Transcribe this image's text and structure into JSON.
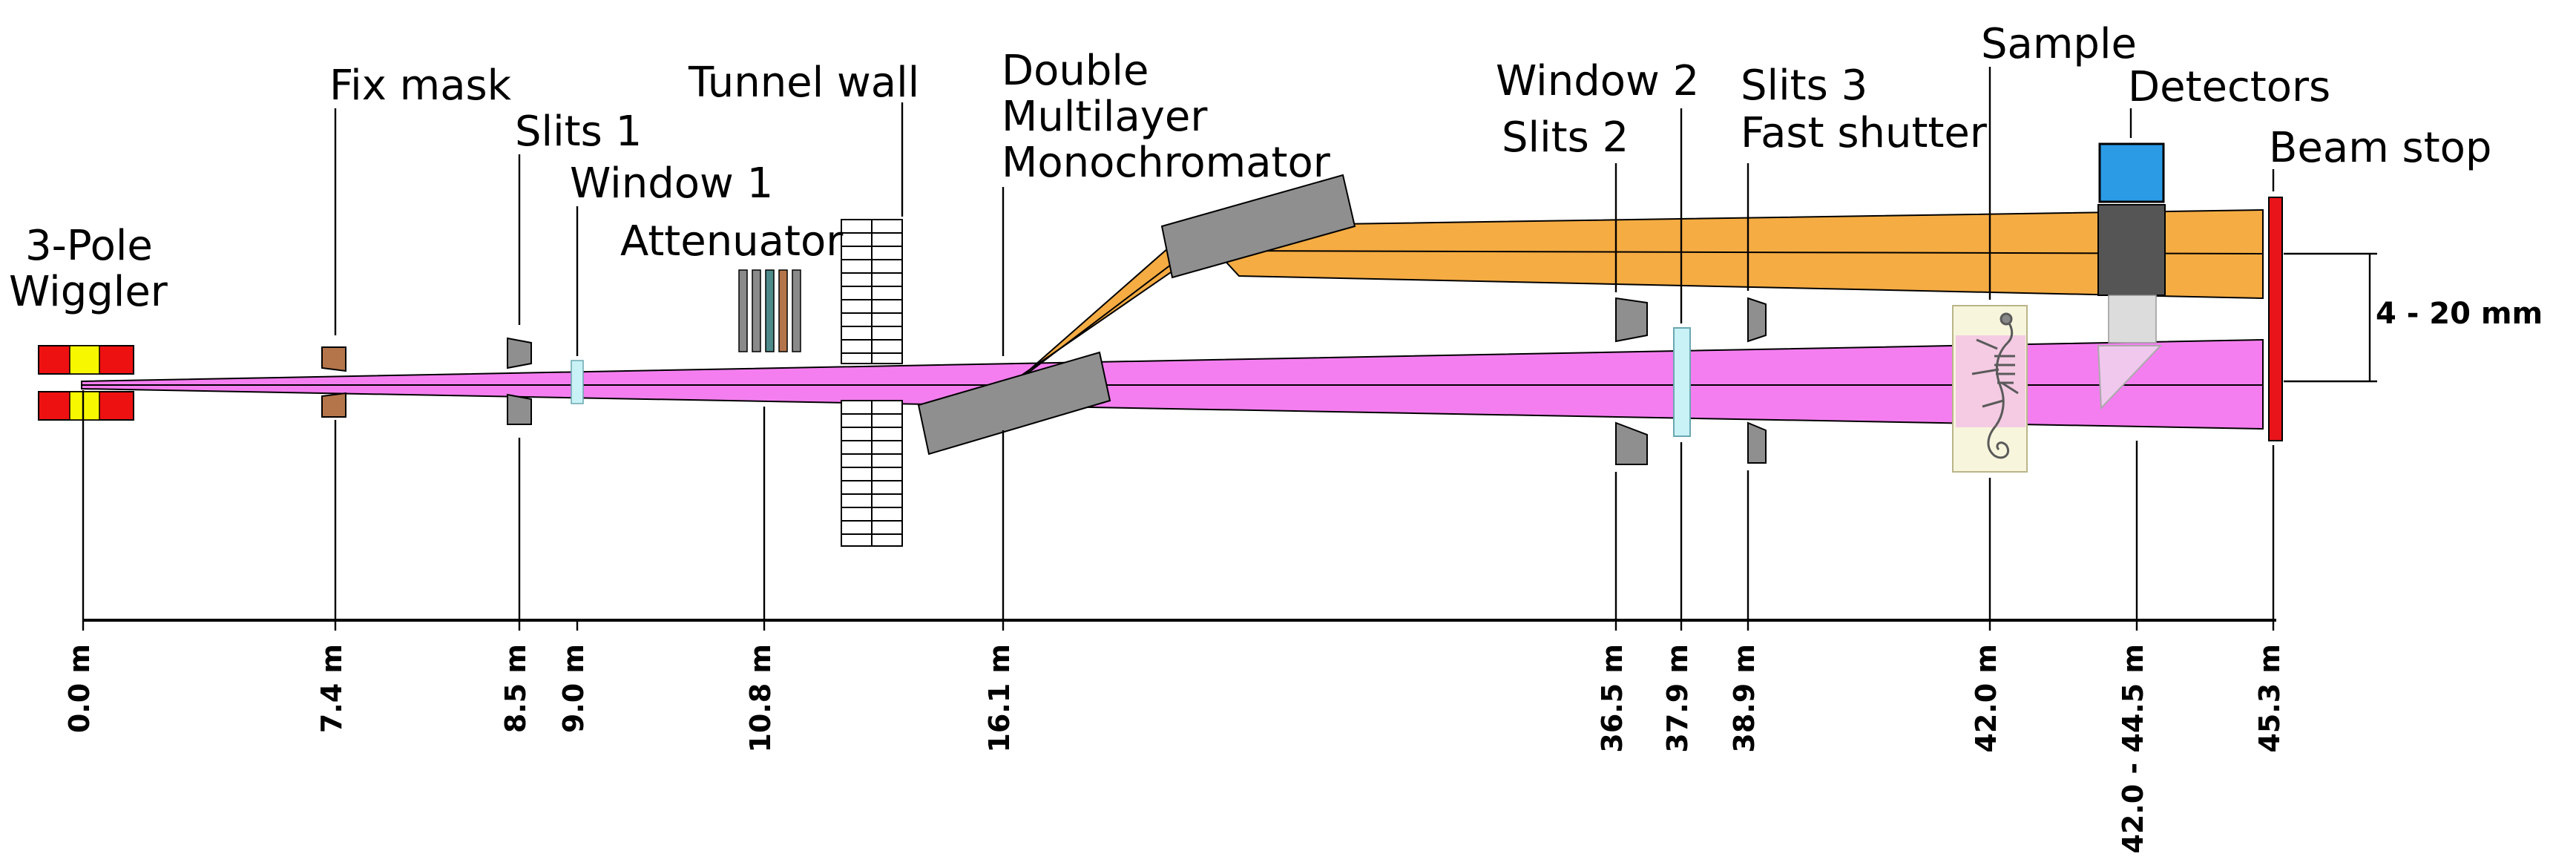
{
  "components": {
    "wiggler": "3-Pole\nWiggler",
    "fix_mask": "Fix mask",
    "slits1": "Slits 1",
    "window1": "Window 1",
    "attenuator": "Attenuator",
    "tunnel_wall": "Tunnel wall",
    "monochromator": "Double\nMultilayer\nMonochromator",
    "window2": "Window 2",
    "slits2": "Slits 2",
    "slits3": "Slits 3\nFast shutter",
    "sample": "Sample",
    "detectors": "Detectors",
    "beam_stop": "Beam stop"
  },
  "distances": [
    {
      "id": "wiggler",
      "value": "0.0 m",
      "m": 0.0
    },
    {
      "id": "fix_mask",
      "value": "7.4 m",
      "m": 7.4
    },
    {
      "id": "slits1",
      "value": "8.5 m",
      "m": 8.5
    },
    {
      "id": "window1",
      "value": "9.0 m",
      "m": 9.0
    },
    {
      "id": "attenuator",
      "value": "10.8 m",
      "m": 10.8
    },
    {
      "id": "monochromator",
      "value": "16.1 m",
      "m": 16.1
    },
    {
      "id": "slits2",
      "value": "36.5 m",
      "m": 36.5
    },
    {
      "id": "window2",
      "value": "37.9 m",
      "m": 37.9
    },
    {
      "id": "slits3",
      "value": "38.9 m",
      "m": 38.9
    },
    {
      "id": "sample",
      "value": "42.0 m",
      "m": 42.0
    },
    {
      "id": "detectors",
      "value": "42.0 - 44.5 m",
      "m": 43.25
    },
    {
      "id": "beam_stop",
      "value": "45.3 m",
      "m": 45.3
    }
  ],
  "beam_offset": "4 - 20 mm",
  "colors": {
    "white_beam": "#f47ef0",
    "mono_beam": "#f5ac43",
    "wiggler_red": "#ee1111",
    "wiggler_yellow": "#f7f700",
    "mask_brown": "#b5754a",
    "component_gray": "#8f8f8f",
    "window_cyan": "#c8f2f6",
    "detector_blue": "#2b9be6",
    "detector_dark": "#555555",
    "beam_stop_red": "#e8141a",
    "sample_bg": "#f7f5dc"
  }
}
